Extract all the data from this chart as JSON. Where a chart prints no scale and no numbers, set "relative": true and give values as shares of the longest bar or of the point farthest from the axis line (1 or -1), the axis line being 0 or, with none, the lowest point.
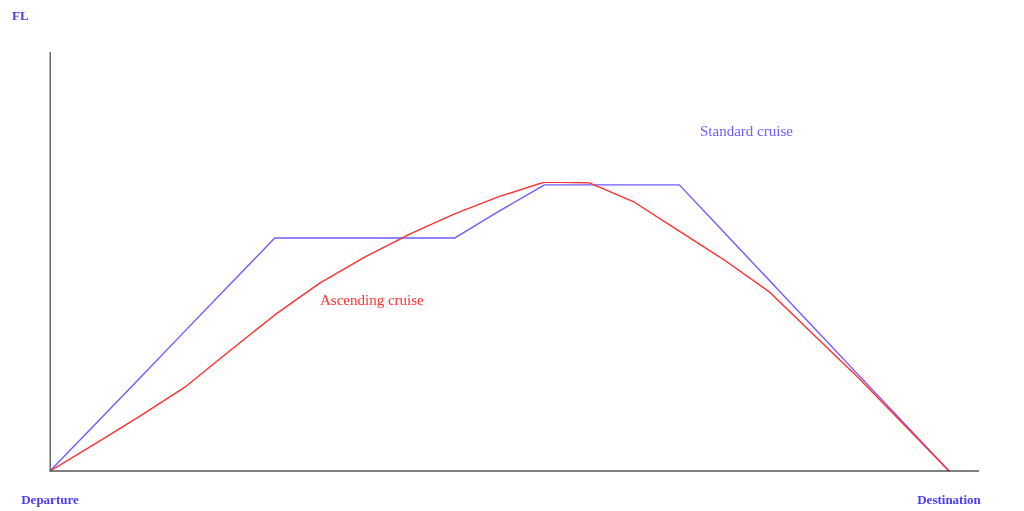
{
  "chart_data": {
    "type": "line",
    "relative": true,
    "annotations": [
      "FL"
    ],
    "categories": [
      "Departure",
      null,
      null,
      null,
      null,
      null,
      null,
      null,
      null,
      null,
      null,
      null,
      null,
      null,
      null,
      null,
      null,
      null,
      null,
      null,
      "Destination"
    ],
    "grid": false,
    "legend": false,
    "marker": "none",
    "line_style": "solid",
    "series": [
      {
        "name": "Standard cruise",
        "color": "#6e5cff",
        "values": [
          0,
          0.161,
          0.322,
          0.484,
          0.645,
          0.806,
          0.806,
          0.806,
          0.806,
          0.806,
          0.9,
          0.99,
          0.99,
          0.99,
          0.99,
          0.825,
          0.66,
          0.495,
          0.33,
          0.165,
          0
        ]
      },
      {
        "name": "Ascending cruise",
        "color": "#ff3030",
        "values": [
          0,
          0.094,
          0.19,
          0.29,
          0.416,
          0.54,
          0.65,
          0.74,
          0.82,
          0.89,
          0.95,
          1,
          0.997,
          0.93,
          0.83,
          0.73,
          0.62,
          0.47,
          0.32,
          0.16,
          0
        ]
      }
    ]
  }
}
